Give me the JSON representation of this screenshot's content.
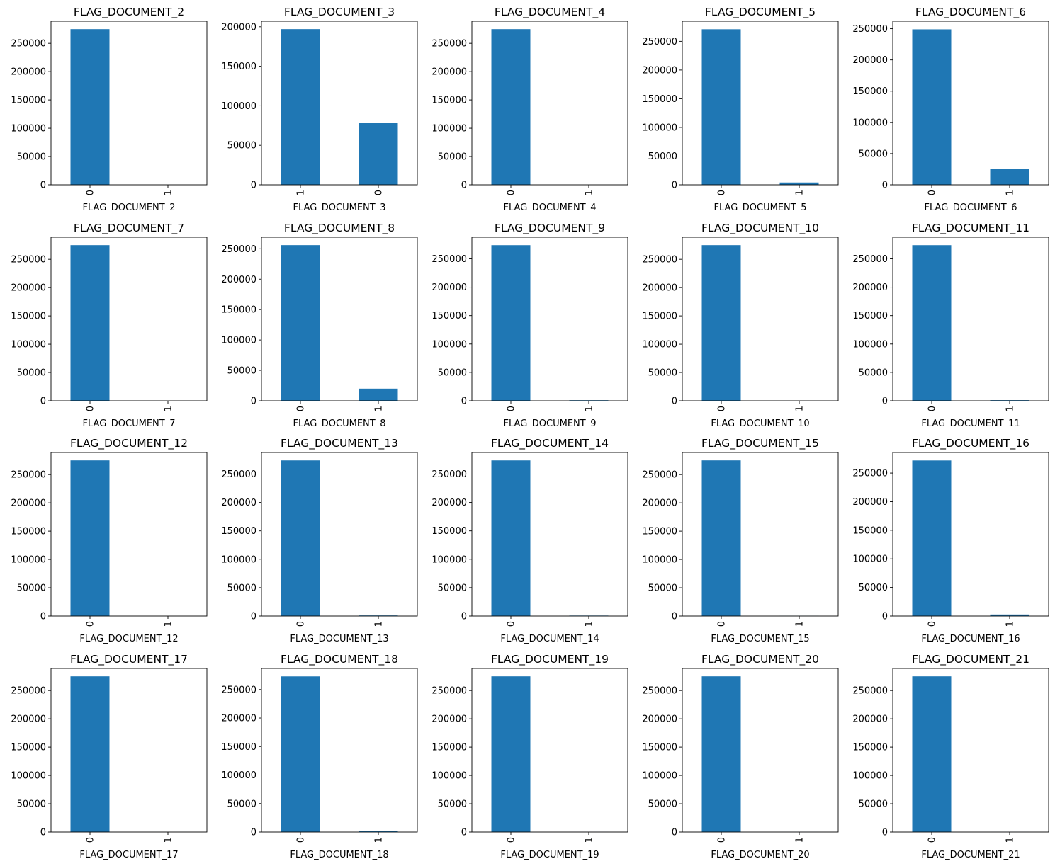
{
  "figure": {
    "bar_color": "#1f77b4"
  },
  "chart_data": [
    {
      "type": "bar",
      "title": "FLAG_DOCUMENT_2",
      "xlabel": "FLAG_DOCUMENT_2",
      "categories": [
        "0",
        "1"
      ],
      "values": [
        275000,
        10
      ],
      "ylim": [
        0,
        289000
      ],
      "yticks": [
        0,
        50000,
        100000,
        150000,
        200000,
        250000
      ]
    },
    {
      "type": "bar",
      "title": "FLAG_DOCUMENT_3",
      "xlabel": "FLAG_DOCUMENT_3",
      "categories": [
        "1",
        "0"
      ],
      "values": [
        197000,
        78000
      ],
      "ylim": [
        0,
        207000
      ],
      "yticks": [
        0,
        50000,
        100000,
        150000,
        200000
      ]
    },
    {
      "type": "bar",
      "title": "FLAG_DOCUMENT_4",
      "xlabel": "FLAG_DOCUMENT_4",
      "categories": [
        "0",
        "1"
      ],
      "values": [
        275000,
        20
      ],
      "ylim": [
        0,
        289000
      ],
      "yticks": [
        0,
        50000,
        100000,
        150000,
        200000,
        250000
      ]
    },
    {
      "type": "bar",
      "title": "FLAG_DOCUMENT_5",
      "xlabel": "FLAG_DOCUMENT_5",
      "categories": [
        "0",
        "1"
      ],
      "values": [
        271000,
        4000
      ],
      "ylim": [
        0,
        285000
      ],
      "yticks": [
        0,
        50000,
        100000,
        150000,
        200000,
        250000
      ]
    },
    {
      "type": "bar",
      "title": "FLAG_DOCUMENT_6",
      "xlabel": "FLAG_DOCUMENT_6",
      "categories": [
        "0",
        "1"
      ],
      "values": [
        249000,
        26000
      ],
      "ylim": [
        0,
        262000
      ],
      "yticks": [
        0,
        50000,
        100000,
        150000,
        200000,
        250000
      ]
    },
    {
      "type": "bar",
      "title": "FLAG_DOCUMENT_7",
      "xlabel": "FLAG_DOCUMENT_7",
      "categories": [
        "0",
        "1"
      ],
      "values": [
        275000,
        50
      ],
      "ylim": [
        0,
        289000
      ],
      "yticks": [
        0,
        50000,
        100000,
        150000,
        200000,
        250000
      ]
    },
    {
      "type": "bar",
      "title": "FLAG_DOCUMENT_8",
      "xlabel": "FLAG_DOCUMENT_8",
      "categories": [
        "0",
        "1"
      ],
      "values": [
        256000,
        20000
      ],
      "ylim": [
        0,
        269000
      ],
      "yticks": [
        0,
        50000,
        100000,
        150000,
        200000,
        250000
      ]
    },
    {
      "type": "bar",
      "title": "FLAG_DOCUMENT_9",
      "xlabel": "FLAG_DOCUMENT_9",
      "categories": [
        "0",
        "1"
      ],
      "values": [
        274000,
        1000
      ],
      "ylim": [
        0,
        288000
      ],
      "yticks": [
        0,
        50000,
        100000,
        150000,
        200000,
        250000
      ]
    },
    {
      "type": "bar",
      "title": "FLAG_DOCUMENT_10",
      "xlabel": "FLAG_DOCUMENT_10",
      "categories": [
        "0",
        "1"
      ],
      "values": [
        275000,
        10
      ],
      "ylim": [
        0,
        289000
      ],
      "yticks": [
        0,
        50000,
        100000,
        150000,
        200000,
        250000
      ]
    },
    {
      "type": "bar",
      "title": "FLAG_DOCUMENT_11",
      "xlabel": "FLAG_DOCUMENT_11",
      "categories": [
        "0",
        "1"
      ],
      "values": [
        274000,
        1100
      ],
      "ylim": [
        0,
        288000
      ],
      "yticks": [
        0,
        50000,
        100000,
        150000,
        200000,
        250000
      ]
    },
    {
      "type": "bar",
      "title": "FLAG_DOCUMENT_12",
      "xlabel": "FLAG_DOCUMENT_12",
      "categories": [
        "0",
        "1"
      ],
      "values": [
        275000,
        5
      ],
      "ylim": [
        0,
        289000
      ],
      "yticks": [
        0,
        50000,
        100000,
        150000,
        200000,
        250000
      ]
    },
    {
      "type": "bar",
      "title": "FLAG_DOCUMENT_13",
      "xlabel": "FLAG_DOCUMENT_13",
      "categories": [
        "0",
        "1"
      ],
      "values": [
        274000,
        1000
      ],
      "ylim": [
        0,
        288000
      ],
      "yticks": [
        0,
        50000,
        100000,
        150000,
        200000,
        250000
      ]
    },
    {
      "type": "bar",
      "title": "FLAG_DOCUMENT_14",
      "xlabel": "FLAG_DOCUMENT_14",
      "categories": [
        "0",
        "1"
      ],
      "values": [
        274000,
        800
      ],
      "ylim": [
        0,
        288000
      ],
      "yticks": [
        0,
        50000,
        100000,
        150000,
        200000,
        250000
      ]
    },
    {
      "type": "bar",
      "title": "FLAG_DOCUMENT_15",
      "xlabel": "FLAG_DOCUMENT_15",
      "categories": [
        "0",
        "1"
      ],
      "values": [
        275000,
        300
      ],
      "ylim": [
        0,
        289000
      ],
      "yticks": [
        0,
        50000,
        100000,
        150000,
        200000,
        250000
      ]
    },
    {
      "type": "bar",
      "title": "FLAG_DOCUMENT_16",
      "xlabel": "FLAG_DOCUMENT_16",
      "categories": [
        "0",
        "1"
      ],
      "values": [
        272000,
        2700
      ],
      "ylim": [
        0,
        286000
      ],
      "yticks": [
        0,
        50000,
        100000,
        150000,
        200000,
        250000
      ]
    },
    {
      "type": "bar",
      "title": "FLAG_DOCUMENT_17",
      "xlabel": "FLAG_DOCUMENT_17",
      "categories": [
        "0",
        "1"
      ],
      "values": [
        275000,
        70
      ],
      "ylim": [
        0,
        289000
      ],
      "yticks": [
        0,
        50000,
        100000,
        150000,
        200000,
        250000
      ]
    },
    {
      "type": "bar",
      "title": "FLAG_DOCUMENT_18",
      "xlabel": "FLAG_DOCUMENT_18",
      "categories": [
        "0",
        "1"
      ],
      "values": [
        273000,
        2200
      ],
      "ylim": [
        0,
        287000
      ],
      "yticks": [
        0,
        50000,
        100000,
        150000,
        200000,
        250000
      ]
    },
    {
      "type": "bar",
      "title": "FLAG_DOCUMENT_19",
      "xlabel": "FLAG_DOCUMENT_19",
      "categories": [
        "0",
        "1"
      ],
      "values": [
        275000,
        150
      ],
      "ylim": [
        0,
        289000
      ],
      "yticks": [
        0,
        50000,
        100000,
        150000,
        200000,
        250000
      ]
    },
    {
      "type": "bar",
      "title": "FLAG_DOCUMENT_20",
      "xlabel": "FLAG_DOCUMENT_20",
      "categories": [
        "0",
        "1"
      ],
      "values": [
        275000,
        130
      ],
      "ylim": [
        0,
        289000
      ],
      "yticks": [
        0,
        50000,
        100000,
        150000,
        200000,
        250000
      ]
    },
    {
      "type": "bar",
      "title": "FLAG_DOCUMENT_21",
      "xlabel": "FLAG_DOCUMENT_21",
      "categories": [
        "0",
        "1"
      ],
      "values": [
        275000,
        90
      ],
      "ylim": [
        0,
        289000
      ],
      "yticks": [
        0,
        50000,
        100000,
        150000,
        200000,
        250000
      ]
    }
  ]
}
